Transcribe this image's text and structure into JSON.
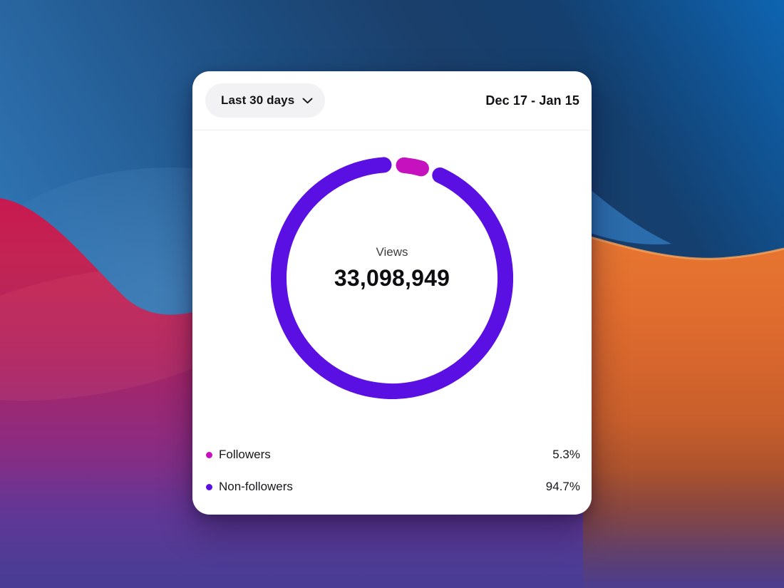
{
  "header": {
    "range_selector_label": "Last 30 days",
    "date_range": "Dec 17 - Jan 15"
  },
  "chart_data": {
    "type": "donut",
    "center_label": "Views",
    "center_value": "33,098,949",
    "rotation_deg": 0.9,
    "ring": {
      "radius": 159,
      "stroke_width": 22,
      "gap_deg": 2.2
    },
    "segments": [
      {
        "label": "Followers",
        "value_pct": 5.3,
        "pct_label": "5.3%",
        "color": "#C511BE"
      },
      {
        "label": "Non-followers",
        "value_pct": 94.7,
        "pct_label": "94.7%",
        "color": "#5A10E2"
      }
    ]
  },
  "wallpaper_colors": {
    "blue_dark": "#1B3B60",
    "blue_bright": "#0E65B2",
    "blue_light_wedge": "#2B6CAC",
    "crimson": "#C8174F",
    "orange": "#E4702F",
    "orange_rim": "#F6A159",
    "bottom_indigo": "#4C3E93",
    "bottom_purple": "#6C3195"
  }
}
